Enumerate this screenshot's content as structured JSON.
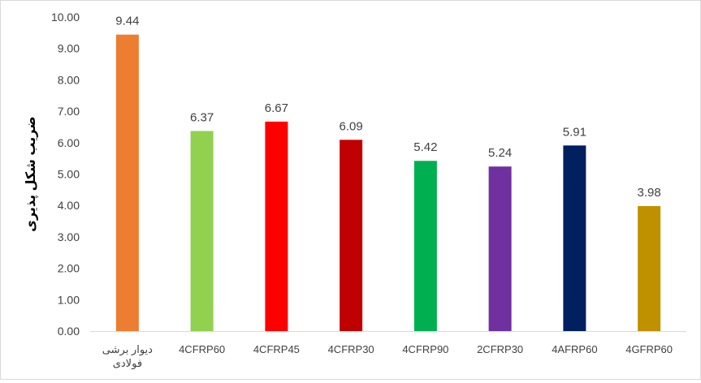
{
  "chart_data": {
    "type": "bar",
    "title": "",
    "xlabel": "",
    "ylabel": "ضریب شکل پذیری",
    "ylim": [
      0,
      10
    ],
    "yticks": [
      "0.00",
      "1.00",
      "2.00",
      "3.00",
      "4.00",
      "5.00",
      "6.00",
      "7.00",
      "8.00",
      "9.00",
      "10.00"
    ],
    "grid": false,
    "legend": "none",
    "categories": [
      [
        "دیوار برشی",
        "فولادی"
      ],
      [
        "4CFRP60"
      ],
      [
        "4CFRP45"
      ],
      [
        "4CFRP30"
      ],
      [
        "4CFRP90"
      ],
      [
        "2CFRP30"
      ],
      [
        "4AFRP60"
      ],
      [
        "4GFRP60"
      ]
    ],
    "values": [
      9.44,
      6.37,
      6.67,
      6.09,
      5.42,
      5.24,
      5.91,
      3.98
    ],
    "data_labels": [
      "9.44",
      "6.37",
      "6.67",
      "6.09",
      "5.42",
      "5.24",
      "5.91",
      "3.98"
    ],
    "colors": [
      "#ED7D31",
      "#92D050",
      "#FF0000",
      "#C00000",
      "#00B050",
      "#7030A0",
      "#002060",
      "#BF9000"
    ]
  }
}
